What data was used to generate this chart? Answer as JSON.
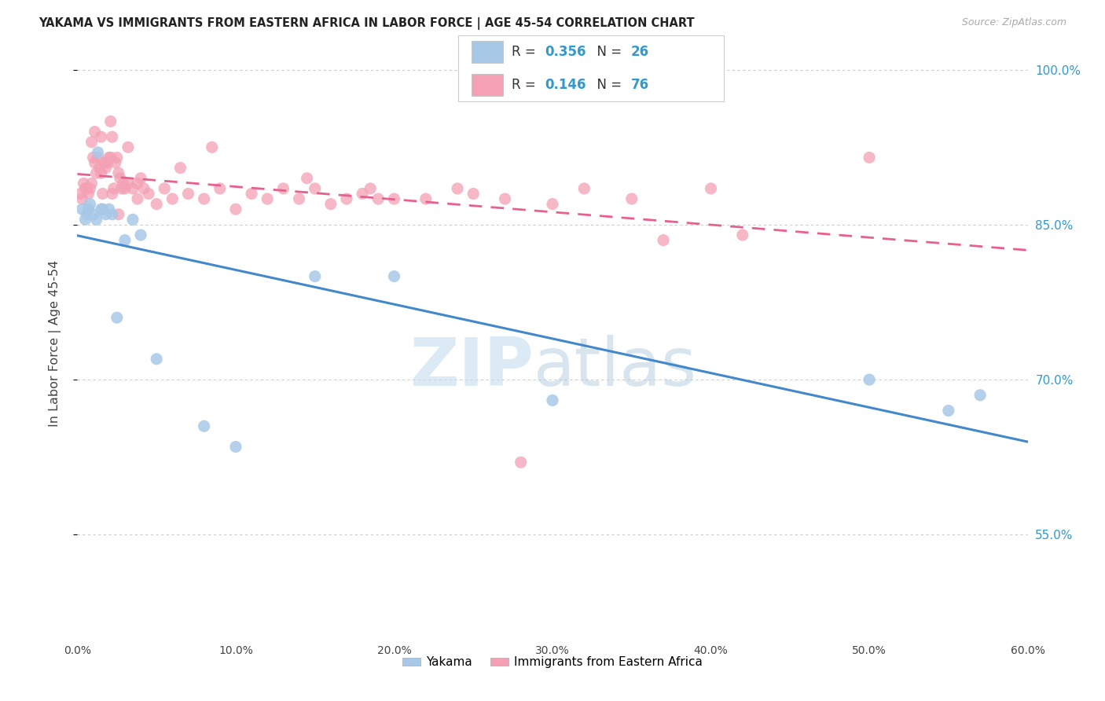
{
  "title": "YAKAMA VS IMMIGRANTS FROM EASTERN AFRICA IN LABOR FORCE | AGE 45-54 CORRELATION CHART",
  "source": "Source: ZipAtlas.com",
  "ylabel_label": "In Labor Force | Age 45-54",
  "legend_R_blue": "0.356",
  "legend_N_blue": "26",
  "legend_R_pink": "0.146",
  "legend_N_pink": "76",
  "blue_color": "#a8c8e8",
  "pink_color": "#f4a0b5",
  "blue_line_color": "#4488cc",
  "pink_line_color": "#e86090",
  "xlim": [
    0,
    60
  ],
  "ylim": [
    45,
    102
  ],
  "yticks": [
    55,
    70,
    85,
    100
  ],
  "xticks": [
    0,
    10,
    20,
    30,
    40,
    50,
    60
  ],
  "yakama_x": [
    0.3,
    0.5,
    0.6,
    0.7,
    0.8,
    1.0,
    1.2,
    1.5,
    1.8,
    2.0,
    2.2,
    2.5,
    3.0,
    3.5,
    4.0,
    5.0,
    8.0,
    10.0,
    15.0,
    20.0,
    30.0,
    50.0,
    55.0,
    57.0,
    1.3,
    1.6
  ],
  "yakama_y": [
    86.5,
    85.5,
    86.0,
    86.5,
    87.0,
    86.0,
    85.5,
    86.5,
    86.0,
    86.5,
    86.0,
    76.0,
    83.5,
    85.5,
    84.0,
    72.0,
    65.5,
    63.5,
    80.0,
    80.0,
    68.0,
    70.0,
    67.0,
    68.5,
    92.0,
    86.5
  ],
  "eastern_africa_x": [
    0.2,
    0.3,
    0.4,
    0.5,
    0.6,
    0.7,
    0.8,
    0.9,
    1.0,
    1.1,
    1.2,
    1.3,
    1.4,
    1.5,
    1.6,
    1.7,
    1.8,
    1.9,
    2.0,
    2.1,
    2.2,
    2.3,
    2.4,
    2.5,
    2.6,
    2.7,
    2.8,
    2.9,
    3.0,
    3.2,
    3.5,
    3.8,
    4.0,
    4.5,
    5.0,
    5.5,
    6.0,
    7.0,
    8.0,
    9.0,
    10.0,
    11.0,
    12.0,
    13.0,
    14.0,
    15.0,
    16.0,
    17.0,
    18.0,
    19.0,
    20.0,
    22.0,
    24.0,
    25.0,
    27.0,
    30.0,
    32.0,
    35.0,
    40.0,
    42.0,
    28.0,
    37.0,
    50.0,
    18.5,
    8.5,
    6.5,
    4.2,
    2.2,
    0.9,
    1.1,
    2.1,
    3.2,
    1.5,
    2.6,
    14.5,
    3.8
  ],
  "eastern_africa_y": [
    88.0,
    87.5,
    89.0,
    88.5,
    88.5,
    88.0,
    88.5,
    89.0,
    91.5,
    91.0,
    90.0,
    91.5,
    90.5,
    90.0,
    88.0,
    91.0,
    90.5,
    91.0,
    91.5,
    91.5,
    88.0,
    88.5,
    91.0,
    91.5,
    90.0,
    89.5,
    88.5,
    89.0,
    88.5,
    89.0,
    88.5,
    89.0,
    89.5,
    88.0,
    87.0,
    88.5,
    87.5,
    88.0,
    87.5,
    88.5,
    86.5,
    88.0,
    87.5,
    88.5,
    87.5,
    88.5,
    87.0,
    87.5,
    88.0,
    87.5,
    87.5,
    87.5,
    88.5,
    88.0,
    87.5,
    87.0,
    88.5,
    87.5,
    88.5,
    84.0,
    62.0,
    83.5,
    91.5,
    88.5,
    92.5,
    90.5,
    88.5,
    93.5,
    93.0,
    94.0,
    95.0,
    92.5,
    93.5,
    86.0,
    89.5,
    87.5
  ]
}
